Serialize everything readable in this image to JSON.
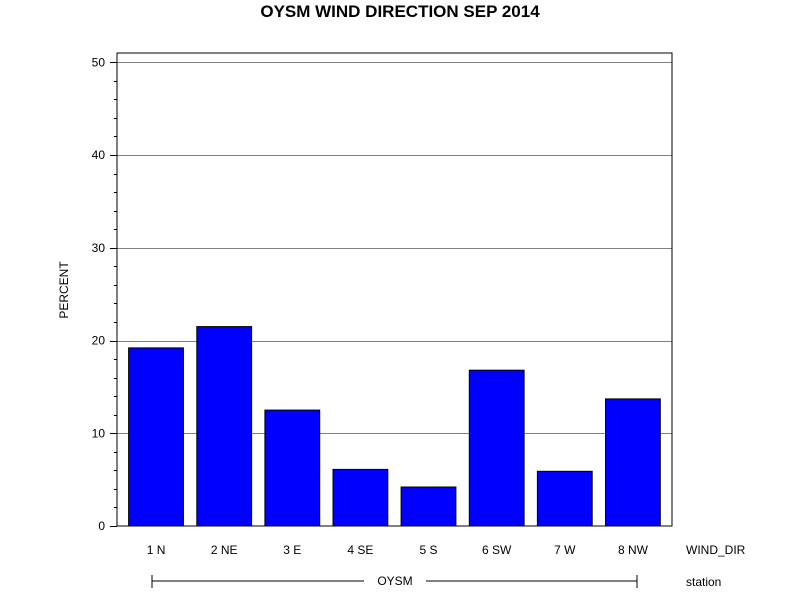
{
  "chart_data": {
    "type": "bar",
    "title": "OYSM WIND DIRECTION SEP 2014",
    "ylabel": "PERCENT",
    "xlabel": "WIND_DIR",
    "group_label": "station",
    "group_value": "OYSM",
    "categories": [
      "1 N",
      "2 NE",
      "3 E",
      "4 SE",
      "5 S",
      "6 SW",
      "7 W",
      "8 NW"
    ],
    "values": [
      19.2,
      21.5,
      12.5,
      6.1,
      4.2,
      16.8,
      5.9,
      13.7
    ],
    "ylim": [
      0,
      51
    ],
    "yticks": [
      0,
      10,
      20,
      30,
      40,
      50
    ],
    "grid": true,
    "bar_color": "#0000ff",
    "edge_color": "#000000"
  }
}
